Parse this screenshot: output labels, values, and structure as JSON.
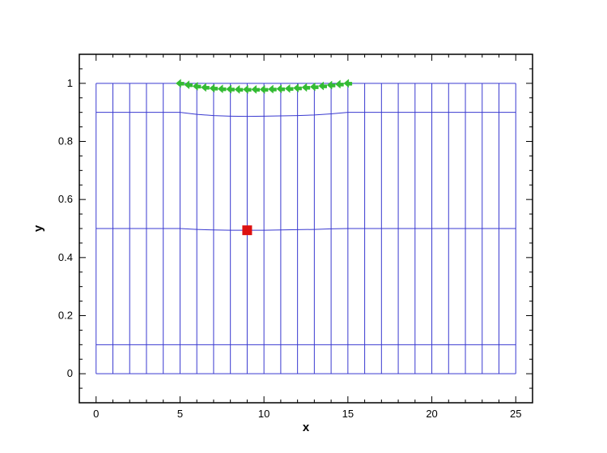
{
  "chart_data": {
    "type": "scatter",
    "title": "",
    "xlabel": "x",
    "ylabel": "y",
    "xlim": [
      -1,
      26
    ],
    "ylim": [
      -0.1,
      1.1
    ],
    "x_ticks": [
      0,
      5,
      10,
      15,
      20,
      25
    ],
    "x_tick_labels": [
      "0",
      "5",
      "10",
      "15",
      "20",
      "25"
    ],
    "y_ticks": [
      0,
      0.2,
      0.4,
      0.6,
      0.8,
      1.0
    ],
    "y_tick_labels": [
      "0",
      "0.2",
      "0.4",
      "0.6",
      "0.8",
      "1"
    ],
    "grid": false,
    "mesh": {
      "color": "#3a3ad0",
      "x_lines": [
        0,
        1,
        2,
        3,
        4,
        5,
        6,
        7,
        8,
        9,
        10,
        11,
        12,
        13,
        14,
        15,
        16,
        17,
        18,
        19,
        20,
        21,
        22,
        23,
        24,
        25
      ],
      "rows": [
        {
          "y": [
            0,
            0,
            0,
            0,
            0,
            0,
            0,
            0,
            0,
            0,
            0,
            0,
            0,
            0,
            0,
            0,
            0,
            0,
            0,
            0,
            0,
            0,
            0,
            0,
            0,
            0
          ]
        },
        {
          "y": [
            0.1,
            0.1,
            0.1,
            0.1,
            0.1,
            0.1,
            0.1,
            0.1,
            0.1,
            0.1,
            0.1,
            0.1,
            0.1,
            0.1,
            0.1,
            0.1,
            0.1,
            0.1,
            0.1,
            0.1,
            0.1,
            0.1,
            0.1,
            0.1,
            0.1,
            0.1
          ]
        },
        {
          "y": [
            0.5,
            0.5,
            0.5,
            0.5,
            0.5,
            0.5,
            0.497,
            0.495,
            0.494,
            0.494,
            0.494,
            0.495,
            0.496,
            0.497,
            0.499,
            0.5,
            0.5,
            0.5,
            0.5,
            0.5,
            0.5,
            0.5,
            0.5,
            0.5,
            0.5,
            0.5
          ]
        },
        {
          "y": [
            0.9,
            0.9,
            0.9,
            0.9,
            0.9,
            0.9,
            0.893,
            0.889,
            0.887,
            0.886,
            0.887,
            0.888,
            0.889,
            0.891,
            0.895,
            0.9,
            0.9,
            0.9,
            0.9,
            0.9,
            0.9,
            0.9,
            0.9,
            0.9,
            0.9,
            0.9
          ]
        },
        {
          "y": [
            1,
            1,
            1,
            1,
            1,
            1,
            1,
            1,
            1,
            1,
            1,
            1,
            1,
            1,
            1,
            1,
            1,
            1,
            1,
            1,
            1,
            1,
            1,
            1,
            1,
            1
          ]
        }
      ]
    },
    "series": [
      {
        "type": "markers",
        "marker": "filled-arrow",
        "color": "#33bb33",
        "x": [
          5,
          5.5,
          6,
          6.5,
          7,
          7.5,
          8,
          8.5,
          9,
          9.5,
          10,
          10.5,
          11,
          11.5,
          12,
          12.5,
          13,
          13.5,
          14,
          14.5,
          15
        ],
        "y": [
          1.0,
          0.995,
          0.99,
          0.986,
          0.983,
          0.981,
          0.98,
          0.979,
          0.979,
          0.979,
          0.979,
          0.98,
          0.981,
          0.982,
          0.984,
          0.986,
          0.988,
          0.991,
          0.994,
          0.997,
          1.0
        ]
      },
      {
        "type": "marker",
        "marker": "square",
        "color": "#dd1111",
        "x": [
          9
        ],
        "y": [
          0.494
        ]
      }
    ]
  }
}
